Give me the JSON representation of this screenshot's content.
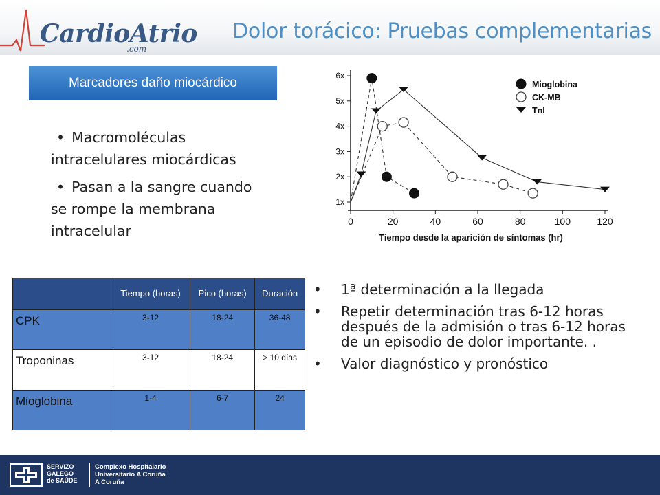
{
  "header": {
    "logo_main": "CardioAtrio",
    "logo_sub": ".com",
    "title": "Dolor torácico: Pruebas complementarias"
  },
  "section": {
    "label": "Marcadores daño miocárdico"
  },
  "bullets_left": [
    "Macromoléculas intracelulares miocárdicas",
    "Pasan a la sangre cuando se rompe la membrana intracelular"
  ],
  "chart_data": {
    "type": "line",
    "title": "",
    "xlabel": "Tiempo desde la aparición de síntomas (hr)",
    "ylabel": "",
    "xlim": [
      0,
      120
    ],
    "ylim": [
      1,
      6
    ],
    "x_ticks": [
      "0",
      "20",
      "40",
      "60",
      "80",
      "100",
      "120"
    ],
    "y_ticks": [
      "1x",
      "2x",
      "3x",
      "4x",
      "5x",
      "6x"
    ],
    "legend_position": "top-right",
    "series": [
      {
        "name": "Mioglobina",
        "marker": "filled-circle",
        "line": "dashed",
        "points": [
          [
            0,
            1
          ],
          [
            10,
            5.9
          ],
          [
            17,
            2
          ],
          [
            30,
            1.35
          ]
        ]
      },
      {
        "name": "CK-MB",
        "marker": "open-circle",
        "line": "dashed",
        "points": [
          [
            0,
            1
          ],
          [
            15,
            4
          ],
          [
            25,
            4.15
          ],
          [
            48,
            2
          ],
          [
            72,
            1.7
          ],
          [
            86,
            1.35
          ]
        ]
      },
      {
        "name": "TnI",
        "marker": "triangle-down",
        "line": "solid",
        "points": [
          [
            0,
            1
          ],
          [
            5,
            2.1
          ],
          [
            12,
            4.6
          ],
          [
            25,
            5.45
          ],
          [
            62,
            2.75
          ],
          [
            88,
            1.8
          ],
          [
            120,
            1.5
          ]
        ]
      }
    ]
  },
  "table": {
    "headers": [
      "Tiempo (horas)",
      "Pico (horas)",
      "Duración"
    ],
    "rows": [
      {
        "name": "CPK",
        "tiempo": "3-12",
        "pico": "18-24",
        "duracion": "36-48"
      },
      {
        "name": "Troponinas",
        "tiempo": "3-12",
        "pico": "18-24",
        "duracion": "> 10 días"
      },
      {
        "name": "Mioglobina",
        "tiempo": "1-4",
        "pico": "6-7",
        "duracion": "24"
      }
    ]
  },
  "bullets_right": [
    "1ª determinación a la llegada",
    "Repetir determinación tras 6-12 horas después de la admisión o tras 6-12 horas de un episodio de dolor importante. .",
    "Valor diagnóstico y pronóstico"
  ],
  "footer": {
    "org1_lines": [
      "SERVIZO",
      "GALEGO",
      "de SAÚDE"
    ],
    "org2_lines": [
      "Complexo Hospitalario",
      "Universitario A Coruña",
      "A Coruña"
    ]
  },
  "colors": {
    "title": "#4f8fc4",
    "section_box": "#2a6ebf",
    "table_header": "#2b4d8a",
    "table_row_blue": "#4f80c7",
    "footer": "#1f3561"
  },
  "icons": {
    "logo": "ecg-heart-logo",
    "footer_logo": "sergas-cross-logo"
  }
}
